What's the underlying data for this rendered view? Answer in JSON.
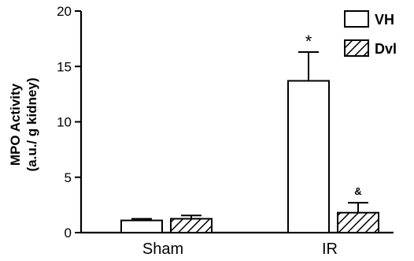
{
  "chart_data": {
    "type": "bar",
    "categories": [
      "Sham",
      "IR"
    ],
    "series": [
      {
        "name": "VH",
        "values": [
          1.1,
          13.7
        ],
        "errors": [
          0.15,
          2.6
        ],
        "fill": "solid-white"
      },
      {
        "name": "Dvl",
        "values": [
          1.25,
          1.8
        ],
        "errors": [
          0.3,
          0.9
        ],
        "fill": "hatched"
      }
    ],
    "ylabel_line1": "MPO Activity",
    "ylabel_line2": "(a.u./ g kidney)",
    "ylim": [
      0,
      20
    ],
    "yticks": [
      "0",
      "5",
      "10",
      "15",
      "20"
    ],
    "legend_position": "top-right",
    "annotations": [
      {
        "text": "*",
        "category": "IR",
        "series": "VH"
      },
      {
        "text": "&",
        "category": "IR",
        "series": "Dvl"
      }
    ]
  },
  "colors": {
    "bar_fill": "#ffffff",
    "stroke": "#000000"
  }
}
